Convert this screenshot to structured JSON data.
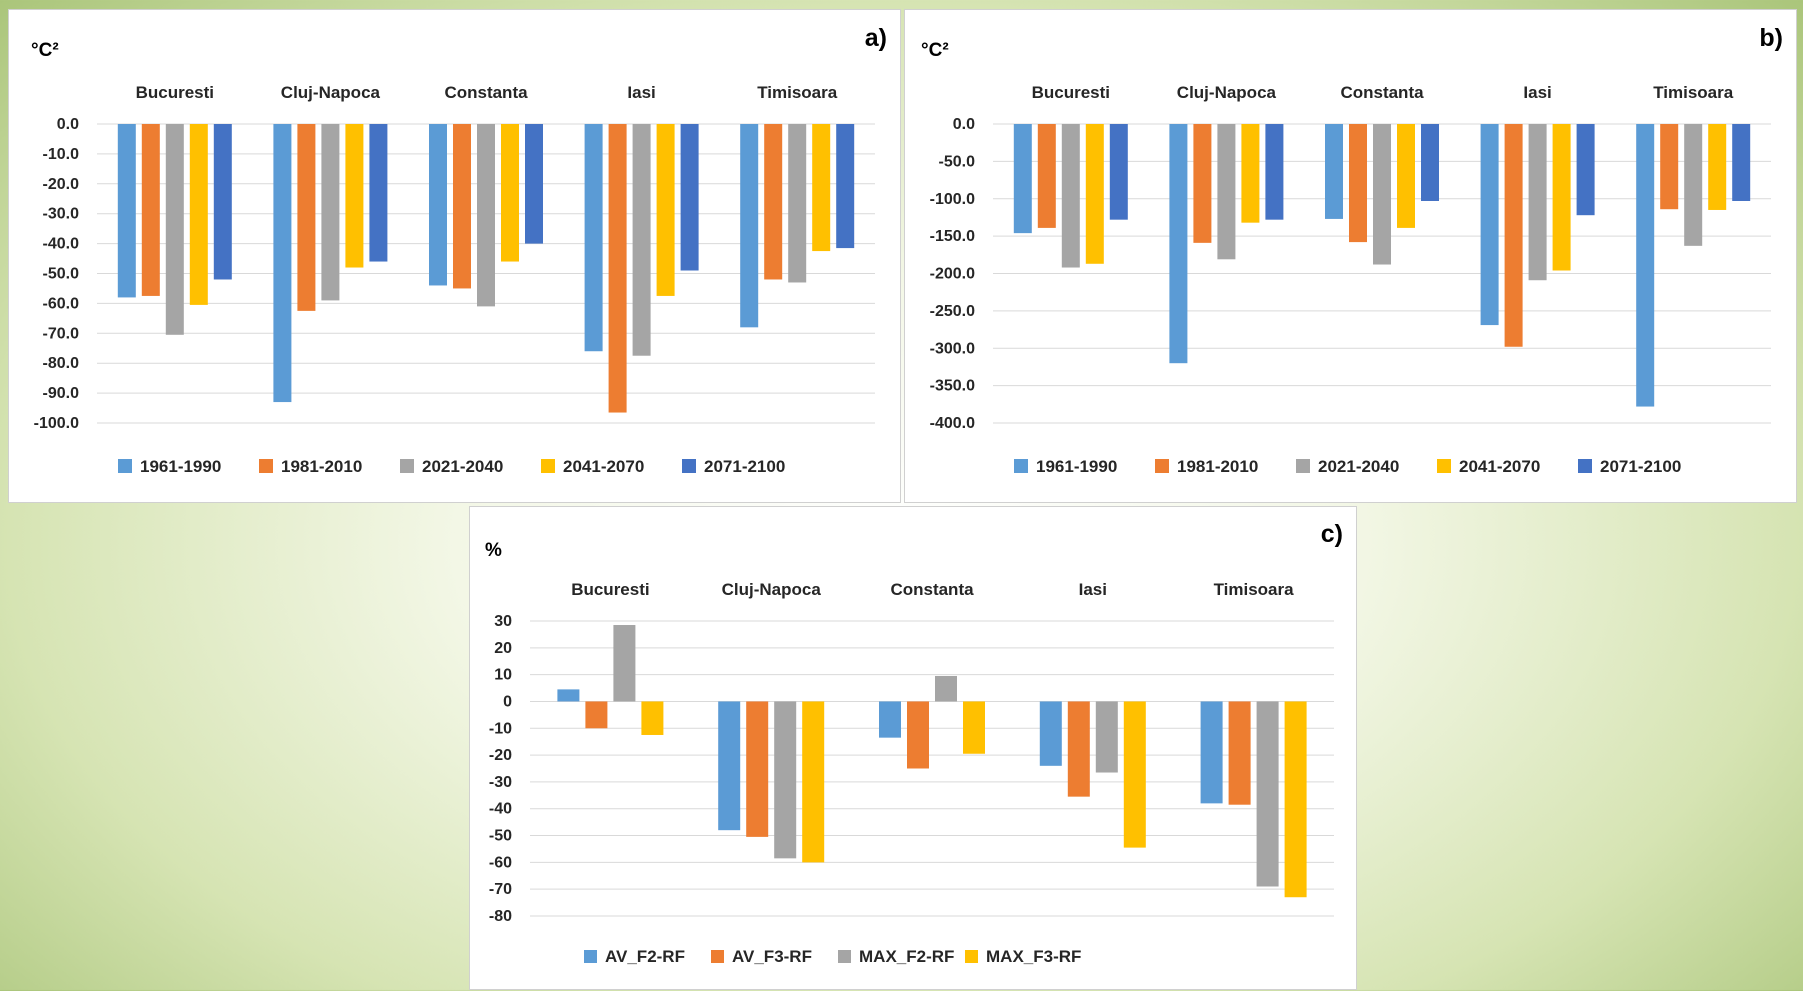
{
  "chart_data": [
    {
      "type": "bar",
      "panel_label": "a)",
      "unit": "°C²",
      "categories": [
        "Bucuresti",
        "Cluj-Napoca",
        "Constanta",
        "Iasi",
        "Timisoara"
      ],
      "ylim": [
        -100,
        0
      ],
      "yticks": [
        0,
        -10,
        -20,
        -30,
        -40,
        -50,
        -60,
        -70,
        -80,
        -90,
        -100
      ],
      "ytick_labels": [
        "0.0",
        "-10.0",
        "-20.0",
        "-30.0",
        "-40.0",
        "-50.0",
        "-60.0",
        "-70.0",
        "-80.0",
        "-90.0",
        "-100.0"
      ],
      "grid": true,
      "legend": "bottom",
      "series": [
        {
          "name": "1961-1990",
          "color": "#5B9BD5",
          "values": [
            -58,
            -93,
            -54,
            -76,
            -68
          ]
        },
        {
          "name": "1981-2010",
          "color": "#ED7D31",
          "values": [
            -57.5,
            -62.5,
            -55,
            -96.5,
            -52
          ]
        },
        {
          "name": "2021-2040",
          "color": "#A5A5A5",
          "values": [
            -70.5,
            -59,
            -61,
            -77.5,
            -53
          ]
        },
        {
          "name": "2041-2070",
          "color": "#FFC000",
          "values": [
            -60.5,
            -48,
            -46,
            -57.5,
            -42.5
          ]
        },
        {
          "name": "2071-2100",
          "color": "#4472C4",
          "values": [
            -52,
            -46,
            -40,
            -49,
            -41.5
          ]
        }
      ]
    },
    {
      "type": "bar",
      "panel_label": "b)",
      "unit": "°C²",
      "categories": [
        "Bucuresti",
        "Cluj-Napoca",
        "Constanta",
        "Iasi",
        "Timisoara"
      ],
      "ylim": [
        -400,
        0
      ],
      "yticks": [
        0,
        -50,
        -100,
        -150,
        -200,
        -250,
        -300,
        -350,
        -400
      ],
      "ytick_labels": [
        "0.0",
        "-50.0",
        "-100.0",
        "-150.0",
        "-200.0",
        "-250.0",
        "-300.0",
        "-350.0",
        "-400.0"
      ],
      "grid": true,
      "legend": "bottom",
      "series": [
        {
          "name": "1961-1990",
          "color": "#5B9BD5",
          "values": [
            -146,
            -320,
            -127,
            -269,
            -378
          ]
        },
        {
          "name": "1981-2010",
          "color": "#ED7D31",
          "values": [
            -139,
            -159,
            -158,
            -298,
            -114
          ]
        },
        {
          "name": "2021-2040",
          "color": "#A5A5A5",
          "values": [
            -192,
            -181,
            -188,
            -209,
            -163
          ]
        },
        {
          "name": "2041-2070",
          "color": "#FFC000",
          "values": [
            -187,
            -132,
            -139,
            -196,
            -115
          ]
        },
        {
          "name": "2071-2100",
          "color": "#4472C4",
          "values": [
            -128,
            -128,
            -103,
            -122,
            -103
          ]
        }
      ]
    },
    {
      "type": "bar",
      "panel_label": "c)",
      "unit": "%",
      "categories": [
        "Bucuresti",
        "Cluj-Napoca",
        "Constanta",
        "Iasi",
        "Timisoara"
      ],
      "ylim": [
        -80,
        30
      ],
      "yticks": [
        30,
        20,
        10,
        0,
        -10,
        -20,
        -30,
        -40,
        -50,
        -60,
        -70,
        -80
      ],
      "ytick_labels": [
        "30",
        "20",
        "10",
        "0",
        "-10",
        "-20",
        "-30",
        "-40",
        "-50",
        "-60",
        "-70",
        "-80"
      ],
      "grid": true,
      "legend": "bottom",
      "series": [
        {
          "name": "AV_F2-RF",
          "color": "#5B9BD5",
          "values": [
            4.5,
            -48,
            -13.5,
            -24,
            -38
          ]
        },
        {
          "name": "AV_F3-RF",
          "color": "#ED7D31",
          "values": [
            -10,
            -50.5,
            -25,
            -35.5,
            -38.5
          ]
        },
        {
          "name": "MAX_F2-RF",
          "color": "#A5A5A5",
          "values": [
            28.5,
            -58.5,
            9.5,
            -26.5,
            -69
          ]
        },
        {
          "name": "MAX_F3-RF",
          "color": "#FFC000",
          "values": [
            -12.5,
            -60,
            -19.5,
            -54.5,
            -73
          ]
        }
      ]
    }
  ]
}
